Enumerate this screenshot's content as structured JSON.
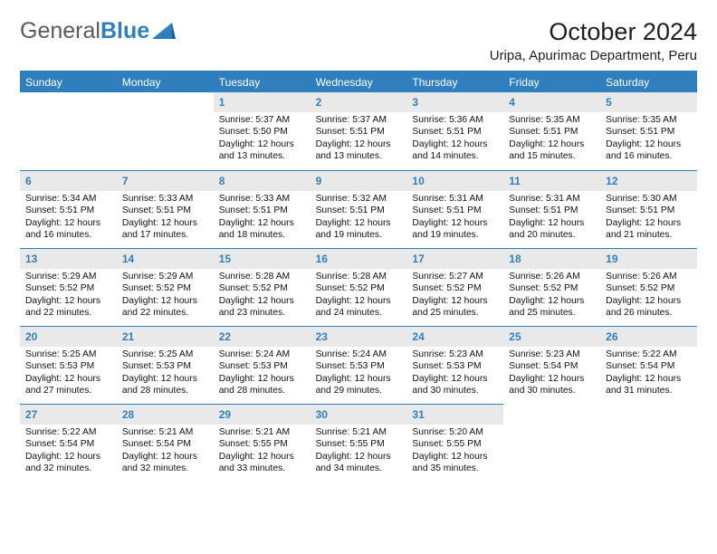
{
  "logo": {
    "word1": "General",
    "word2": "Blue"
  },
  "title": "October 2024",
  "location": "Uripa, Apurimac Department, Peru",
  "weekdays": [
    "Sunday",
    "Monday",
    "Tuesday",
    "Wednesday",
    "Thursday",
    "Friday",
    "Saturday"
  ],
  "colors": {
    "brand_blue": "#2f7fbf",
    "gray_header": "#e9e9e9",
    "text": "#111111"
  },
  "weeks": [
    [
      null,
      null,
      {
        "n": "1",
        "sr": "5:37 AM",
        "ss": "5:50 PM",
        "dl": "12 hours and 13 minutes."
      },
      {
        "n": "2",
        "sr": "5:37 AM",
        "ss": "5:51 PM",
        "dl": "12 hours and 13 minutes."
      },
      {
        "n": "3",
        "sr": "5:36 AM",
        "ss": "5:51 PM",
        "dl": "12 hours and 14 minutes."
      },
      {
        "n": "4",
        "sr": "5:35 AM",
        "ss": "5:51 PM",
        "dl": "12 hours and 15 minutes."
      },
      {
        "n": "5",
        "sr": "5:35 AM",
        "ss": "5:51 PM",
        "dl": "12 hours and 16 minutes."
      }
    ],
    [
      {
        "n": "6",
        "sr": "5:34 AM",
        "ss": "5:51 PM",
        "dl": "12 hours and 16 minutes."
      },
      {
        "n": "7",
        "sr": "5:33 AM",
        "ss": "5:51 PM",
        "dl": "12 hours and 17 minutes."
      },
      {
        "n": "8",
        "sr": "5:33 AM",
        "ss": "5:51 PM",
        "dl": "12 hours and 18 minutes."
      },
      {
        "n": "9",
        "sr": "5:32 AM",
        "ss": "5:51 PM",
        "dl": "12 hours and 19 minutes."
      },
      {
        "n": "10",
        "sr": "5:31 AM",
        "ss": "5:51 PM",
        "dl": "12 hours and 19 minutes."
      },
      {
        "n": "11",
        "sr": "5:31 AM",
        "ss": "5:51 PM",
        "dl": "12 hours and 20 minutes."
      },
      {
        "n": "12",
        "sr": "5:30 AM",
        "ss": "5:51 PM",
        "dl": "12 hours and 21 minutes."
      }
    ],
    [
      {
        "n": "13",
        "sr": "5:29 AM",
        "ss": "5:52 PM",
        "dl": "12 hours and 22 minutes."
      },
      {
        "n": "14",
        "sr": "5:29 AM",
        "ss": "5:52 PM",
        "dl": "12 hours and 22 minutes."
      },
      {
        "n": "15",
        "sr": "5:28 AM",
        "ss": "5:52 PM",
        "dl": "12 hours and 23 minutes."
      },
      {
        "n": "16",
        "sr": "5:28 AM",
        "ss": "5:52 PM",
        "dl": "12 hours and 24 minutes."
      },
      {
        "n": "17",
        "sr": "5:27 AM",
        "ss": "5:52 PM",
        "dl": "12 hours and 25 minutes."
      },
      {
        "n": "18",
        "sr": "5:26 AM",
        "ss": "5:52 PM",
        "dl": "12 hours and 25 minutes."
      },
      {
        "n": "19",
        "sr": "5:26 AM",
        "ss": "5:52 PM",
        "dl": "12 hours and 26 minutes."
      }
    ],
    [
      {
        "n": "20",
        "sr": "5:25 AM",
        "ss": "5:53 PM",
        "dl": "12 hours and 27 minutes."
      },
      {
        "n": "21",
        "sr": "5:25 AM",
        "ss": "5:53 PM",
        "dl": "12 hours and 28 minutes."
      },
      {
        "n": "22",
        "sr": "5:24 AM",
        "ss": "5:53 PM",
        "dl": "12 hours and 28 minutes."
      },
      {
        "n": "23",
        "sr": "5:24 AM",
        "ss": "5:53 PM",
        "dl": "12 hours and 29 minutes."
      },
      {
        "n": "24",
        "sr": "5:23 AM",
        "ss": "5:53 PM",
        "dl": "12 hours and 30 minutes."
      },
      {
        "n": "25",
        "sr": "5:23 AM",
        "ss": "5:54 PM",
        "dl": "12 hours and 30 minutes."
      },
      {
        "n": "26",
        "sr": "5:22 AM",
        "ss": "5:54 PM",
        "dl": "12 hours and 31 minutes."
      }
    ],
    [
      {
        "n": "27",
        "sr": "5:22 AM",
        "ss": "5:54 PM",
        "dl": "12 hours and 32 minutes."
      },
      {
        "n": "28",
        "sr": "5:21 AM",
        "ss": "5:54 PM",
        "dl": "12 hours and 32 minutes."
      },
      {
        "n": "29",
        "sr": "5:21 AM",
        "ss": "5:55 PM",
        "dl": "12 hours and 33 minutes."
      },
      {
        "n": "30",
        "sr": "5:21 AM",
        "ss": "5:55 PM",
        "dl": "12 hours and 34 minutes."
      },
      {
        "n": "31",
        "sr": "5:20 AM",
        "ss": "5:55 PM",
        "dl": "12 hours and 35 minutes."
      },
      null,
      null
    ]
  ],
  "labels": {
    "sunrise": "Sunrise:",
    "sunset": "Sunset:",
    "daylight": "Daylight:"
  }
}
